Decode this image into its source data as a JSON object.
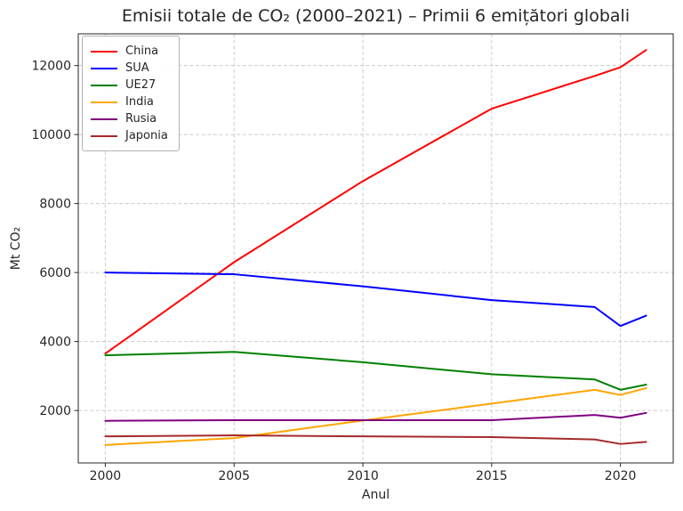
{
  "page": {
    "background": "#ffffff",
    "text_color": "#262626",
    "grid_color": "#cccccc",
    "spine_color": "#262626"
  },
  "chart_data": {
    "type": "line",
    "title": "Emisii totale de CO₂ (2000–2021) – Primii 6 emițători globali",
    "xlabel": "Anul",
    "ylabel": "Mt CO₂",
    "x": [
      2000,
      2005,
      2010,
      2015,
      2019,
      2020,
      2021
    ],
    "series": [
      {
        "name": "China",
        "color": "#ff0000",
        "values": [
          3650,
          6300,
          8650,
          10750,
          11700,
          11950,
          12450
        ]
      },
      {
        "name": "SUA",
        "color": "#0000ff",
        "values": [
          6000,
          5950,
          5600,
          5200,
          5000,
          4450,
          4750
        ]
      },
      {
        "name": "UE27",
        "color": "#008000",
        "values": [
          3600,
          3700,
          3400,
          3050,
          2900,
          2600,
          2750
        ]
      },
      {
        "name": "India",
        "color": "#ffa500",
        "values": [
          1000,
          1200,
          1710,
          2200,
          2600,
          2450,
          2650
        ]
      },
      {
        "name": "Rusia",
        "color": "#800080",
        "values": [
          1700,
          1720,
          1720,
          1720,
          1870,
          1790,
          1930
        ]
      },
      {
        "name": "Japonia",
        "color": "#a52a2a",
        "values": [
          1250,
          1280,
          1250,
          1230,
          1160,
          1030,
          1090
        ]
      }
    ],
    "x_ticks": [
      2000,
      2005,
      2010,
      2015,
      2020
    ],
    "y_ticks": [
      2000,
      4000,
      6000,
      8000,
      10000,
      12000
    ],
    "xlim": [
      1998.95,
      2022.05
    ],
    "ylim": [
      480,
      12920
    ],
    "grid": true,
    "grid_style": "dashed",
    "legend_position": "upper left",
    "line_width": 2
  }
}
